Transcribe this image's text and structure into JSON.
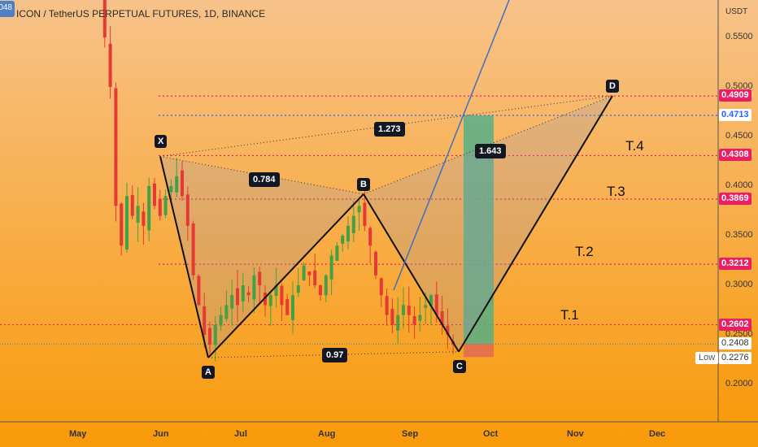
{
  "header": {
    "title": "ICON / TetherUS PERPETUAL FUTURES, 1D, BINANCE",
    "corner_badge": "048"
  },
  "price_axis": {
    "unit": "USDT",
    "ticks": [
      "0.5500",
      "0.5000",
      "0.4500",
      "0.4000",
      "0.3500",
      "0.3000",
      "0.2500",
      "0.2000"
    ]
  },
  "time_axis": {
    "ticks": [
      "May",
      "Jun",
      "Jul",
      "Aug",
      "Sep",
      "Oct",
      "Nov",
      "Dec"
    ]
  },
  "levels": [
    {
      "price": 0.4909,
      "label": "0.4909",
      "color": "#e91e63"
    },
    {
      "price": 0.4713,
      "label": "0.4713",
      "color": "#2962ff"
    },
    {
      "price": 0.4308,
      "label": "0.4308",
      "color": "#e91e63"
    },
    {
      "price": 0.3869,
      "label": "0.3869",
      "color": "#e91e63"
    },
    {
      "price": 0.3212,
      "label": "0.3212",
      "color": "#e91e63"
    },
    {
      "price": 0.2602,
      "label": "0.2602",
      "color": "#e91e63"
    },
    {
      "price": 0.2408,
      "label": "0.2408",
      "color": "#4a90a4"
    }
  ],
  "low_marker": {
    "label": "Low",
    "value": "0.2276"
  },
  "pattern": {
    "points": [
      {
        "name": "X",
        "price": 0.43
      },
      {
        "name": "A",
        "price": 0.227
      },
      {
        "name": "B",
        "price": 0.392
      },
      {
        "name": "C",
        "price": 0.233
      },
      {
        "name": "D",
        "price": 0.491
      }
    ],
    "ratios": [
      "0.784",
      "0.97",
      "1.273",
      "1.643"
    ]
  },
  "targets": [
    "T.1",
    "T.2",
    "T.3",
    "T.4"
  ],
  "colors": {
    "background_top": "#f7c28a",
    "background_bottom": "#f99a09",
    "up_candle": "#43a047",
    "down_candle": "#e53935",
    "level_line": "#e91e63",
    "projection_line": "#3f6fbf",
    "target_box": "#4caf8a"
  },
  "chart_data": {
    "type": "candlestick",
    "title": "ICON / TetherUS PERPETUAL FUTURES, 1D, BINANCE",
    "y_unit": "USDT",
    "ylim": [
      0.16,
      0.6
    ],
    "x_months": [
      "May",
      "Jun",
      "Jul",
      "Aug",
      "Sep",
      "Oct",
      "Nov",
      "Dec"
    ],
    "series_approx_close": [
      0.62,
      0.55,
      0.5,
      0.38,
      0.34,
      0.39,
      0.37,
      0.38,
      0.36,
      0.4,
      0.38,
      0.37,
      0.39,
      0.4,
      0.41,
      0.39,
      0.36,
      0.31,
      0.28,
      0.25,
      0.24,
      0.26,
      0.27,
      0.28,
      0.29,
      0.28,
      0.3,
      0.29,
      0.31,
      0.3,
      0.28,
      0.29,
      0.3,
      0.28,
      0.27,
      0.29,
      0.3,
      0.32,
      0.31,
      0.3,
      0.29,
      0.31,
      0.33,
      0.34,
      0.35,
      0.36,
      0.37,
      0.38,
      0.36,
      0.34,
      0.31,
      0.29,
      0.27,
      0.26,
      0.27,
      0.28,
      0.27,
      0.26,
      0.27,
      0.28,
      0.29,
      0.27,
      0.26,
      0.25,
      0.24
    ]
  }
}
